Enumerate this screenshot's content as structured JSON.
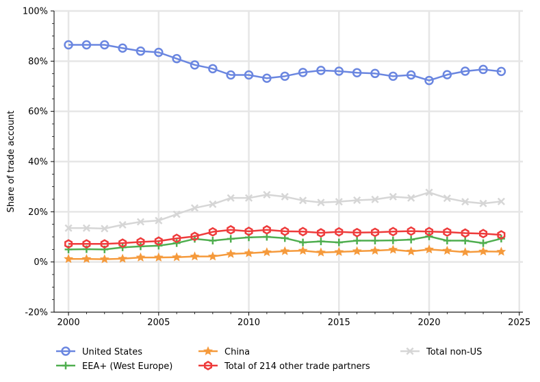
{
  "chart_data": {
    "type": "line",
    "title": "",
    "xlabel": "",
    "ylabel": "Share of trade account",
    "xlim": [
      1999.2,
      2025.2
    ],
    "ylim": [
      -20,
      100
    ],
    "x_ticks": [
      2000,
      2005,
      2010,
      2015,
      2020,
      2025
    ],
    "x_tick_labels": [
      "2000",
      "2005",
      "2010",
      "2015",
      "2020",
      "2025"
    ],
    "y_ticks": [
      -20,
      0,
      20,
      40,
      60,
      80,
      100
    ],
    "y_tick_labels": [
      "-20%",
      "0%",
      "20%",
      "40%",
      "60%",
      "80%",
      "100%"
    ],
    "grid": true,
    "legend_position": "bottom",
    "x": [
      2000,
      2001,
      2002,
      2003,
      2004,
      2005,
      2006,
      2007,
      2008,
      2009,
      2010,
      2011,
      2012,
      2013,
      2014,
      2015,
      2016,
      2017,
      2018,
      2019,
      2020,
      2021,
      2022,
      2023,
      2024
    ],
    "series": [
      {
        "name": "United States",
        "color": "#6a86e0",
        "marker": "circle",
        "values": [
          86.5,
          86.5,
          86.5,
          85.2,
          84.0,
          83.5,
          81.0,
          78.5,
          77.0,
          74.5,
          74.5,
          73.2,
          74.0,
          75.5,
          76.3,
          76.0,
          75.4,
          75.1,
          74.0,
          74.5,
          72.3,
          74.6,
          76.0,
          76.7,
          75.9
        ]
      },
      {
        "name": "EEA+ (West Europe)",
        "color": "#4fae4f",
        "marker": "plus",
        "values": [
          5.0,
          5.1,
          5.0,
          5.8,
          6.2,
          6.5,
          7.5,
          9.2,
          8.5,
          9.2,
          9.8,
          10.0,
          9.5,
          7.8,
          8.2,
          7.8,
          8.5,
          8.5,
          8.6,
          8.9,
          10.2,
          8.5,
          8.5,
          7.5,
          9.3
        ]
      },
      {
        "name": "China",
        "color": "#f59a3c",
        "marker": "star",
        "values": [
          1.2,
          1.2,
          1.1,
          1.3,
          1.8,
          1.8,
          1.9,
          2.2,
          2.2,
          3.2,
          3.5,
          3.9,
          4.3,
          4.5,
          3.8,
          4.0,
          4.3,
          4.5,
          4.9,
          4.2,
          5.0,
          4.5,
          3.9,
          4.2,
          4.1
        ]
      },
      {
        "name": "Total of 214 other trade partners",
        "color": "#ee3b3b",
        "marker": "hexagon",
        "values": [
          7.2,
          7.2,
          7.2,
          7.5,
          8.0,
          8.3,
          9.4,
          10.2,
          12.0,
          12.8,
          12.2,
          12.8,
          12.2,
          12.1,
          11.6,
          12.0,
          11.7,
          11.8,
          12.1,
          12.3,
          12.1,
          11.9,
          11.5,
          11.3,
          10.8
        ]
      },
      {
        "name": "Total non-US",
        "color": "#d6d6d6",
        "marker": "x",
        "values": [
          13.5,
          13.5,
          13.3,
          14.8,
          16.0,
          16.5,
          19.0,
          21.5,
          23.0,
          25.5,
          25.5,
          26.8,
          26.0,
          24.5,
          23.7,
          24.0,
          24.6,
          24.9,
          26.0,
          25.5,
          27.7,
          25.4,
          24.0,
          23.3,
          24.1
        ]
      }
    ]
  }
}
